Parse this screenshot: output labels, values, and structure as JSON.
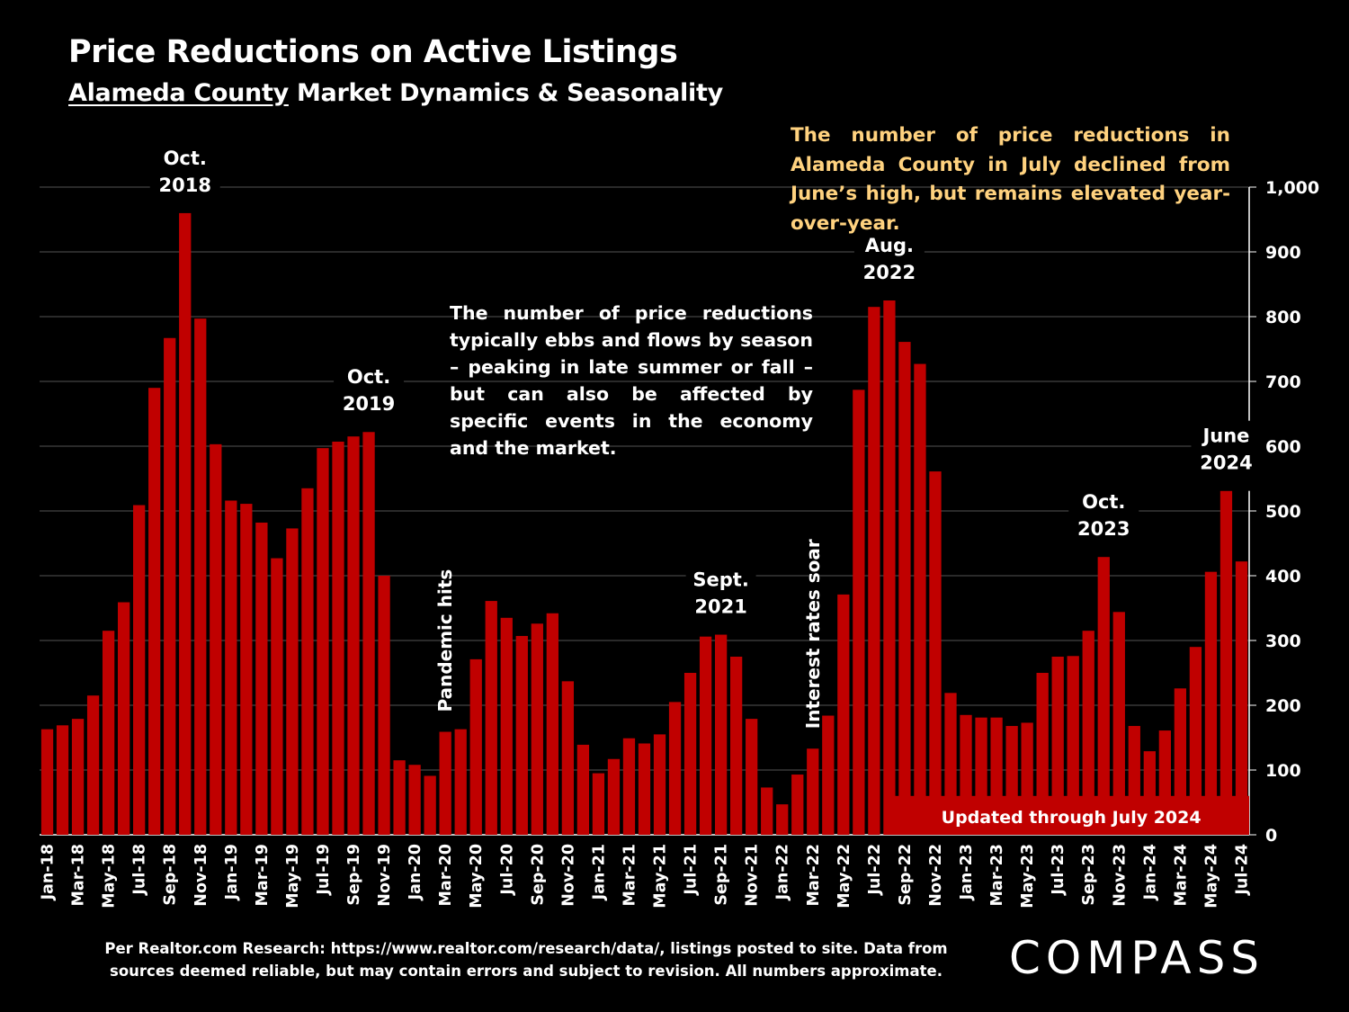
{
  "header": {
    "title": "Price Reductions on Active Listings",
    "subtitle_underlined": "Alameda County",
    "subtitle_rest": " Market Dynamics & Seasonality"
  },
  "callout": "The number of price reductions in Alameda County in July declined from June’s high, but remains elevated year-over-year.",
  "note": "The number of price reductions typically ebbs and flows by season – peaking in late summer or fall – but can also be affected by specific events in the economy and the market.",
  "footnote": {
    "line1": "Per Realtor.com Research:  https://www.realtor.com/research/data/, listings posted to site. Data from",
    "line2": "sources deemed reliable, but may contain errors and subject to revision. All numbers approximate."
  },
  "logo_text": "COMPASS",
  "colors": {
    "bar": "#C00000",
    "background": "#000000",
    "callout": "#FFD27F",
    "grid": "#555555"
  },
  "chart_data": {
    "type": "bar",
    "title": "Price Reductions on Active Listings",
    "ylim": [
      0,
      1000
    ],
    "yticks": [
      0,
      100,
      200,
      300,
      400,
      500,
      600,
      700,
      800,
      900,
      1000
    ],
    "ytick_labels": [
      "0",
      "100",
      "200",
      "300",
      "400",
      "500",
      "600",
      "700",
      "800",
      "900",
      "1,000"
    ],
    "y_axis_side": "right",
    "grid": true,
    "categories": [
      "Jan-18",
      "Feb-18",
      "Mar-18",
      "Apr-18",
      "May-18",
      "Jun-18",
      "Jul-18",
      "Aug-18",
      "Sep-18",
      "Oct-18",
      "Nov-18",
      "Dec-18",
      "Jan-19",
      "Feb-19",
      "Mar-19",
      "Apr-19",
      "May-19",
      "Jun-19",
      "Jul-19",
      "Aug-19",
      "Sep-19",
      "Oct-19",
      "Nov-19",
      "Dec-19",
      "Jan-20",
      "Feb-20",
      "Mar-20",
      "Apr-20",
      "May-20",
      "Jun-20",
      "Jul-20",
      "Aug-20",
      "Sep-20",
      "Oct-20",
      "Nov-20",
      "Dec-20",
      "Jan-21",
      "Feb-21",
      "Mar-21",
      "Apr-21",
      "May-21",
      "Jun-21",
      "Jul-21",
      "Aug-21",
      "Sep-21",
      "Oct-21",
      "Nov-21",
      "Dec-21",
      "Jan-22",
      "Feb-22",
      "Mar-22",
      "Apr-22",
      "May-22",
      "Jun-22",
      "Jul-22",
      "Aug-22",
      "Sep-22",
      "Oct-22",
      "Nov-22",
      "Dec-22",
      "Jan-23",
      "Feb-23",
      "Mar-23",
      "Apr-23",
      "May-23",
      "Jun-23",
      "Jul-23",
      "Aug-23",
      "Sep-23",
      "Oct-23",
      "Nov-23",
      "Dec-23",
      "Jan-24",
      "Feb-24",
      "Mar-24",
      "Apr-24",
      "May-24",
      "Jun-24",
      "Jul-24"
    ],
    "tick_label_every": 2,
    "values": [
      163,
      169,
      179,
      215,
      315,
      359,
      509,
      690,
      767,
      960,
      797,
      603,
      516,
      511,
      482,
      427,
      473,
      535,
      597,
      607,
      615,
      622,
      400,
      115,
      108,
      91,
      159,
      163,
      271,
      361,
      335,
      307,
      326,
      342,
      237,
      139,
      95,
      117,
      149,
      141,
      155,
      205,
      250,
      306,
      309,
      275,
      179,
      73,
      47,
      93,
      133,
      184,
      371,
      687,
      815,
      825,
      761,
      727,
      561,
      219,
      185,
      181,
      181,
      168,
      173,
      250,
      275,
      276,
      315,
      429,
      344,
      168,
      129,
      161,
      226,
      290,
      406,
      531,
      422
    ],
    "annotations": [
      {
        "category": "Oct-18",
        "lines": [
          "Oct.",
          "2018"
        ]
      },
      {
        "category": "Oct-19",
        "lines": [
          "Oct.",
          "2019"
        ]
      },
      {
        "category": "Sep-21",
        "lines": [
          "Sept.",
          "2021"
        ]
      },
      {
        "category": "Aug-22",
        "lines": [
          "Aug.",
          "2022"
        ]
      },
      {
        "category": "Oct-23",
        "lines": [
          "Oct.",
          "2023"
        ]
      },
      {
        "category": "Jun-24",
        "lines": [
          "June",
          "2024"
        ]
      }
    ],
    "event_labels": [
      {
        "category": "Mar-20",
        "text": "Pandemic hits"
      },
      {
        "category": "Mar-22",
        "text": "Interest rates soar"
      }
    ],
    "banner": {
      "text": "Updated through July 2024",
      "start_category": "Sep-22"
    }
  }
}
